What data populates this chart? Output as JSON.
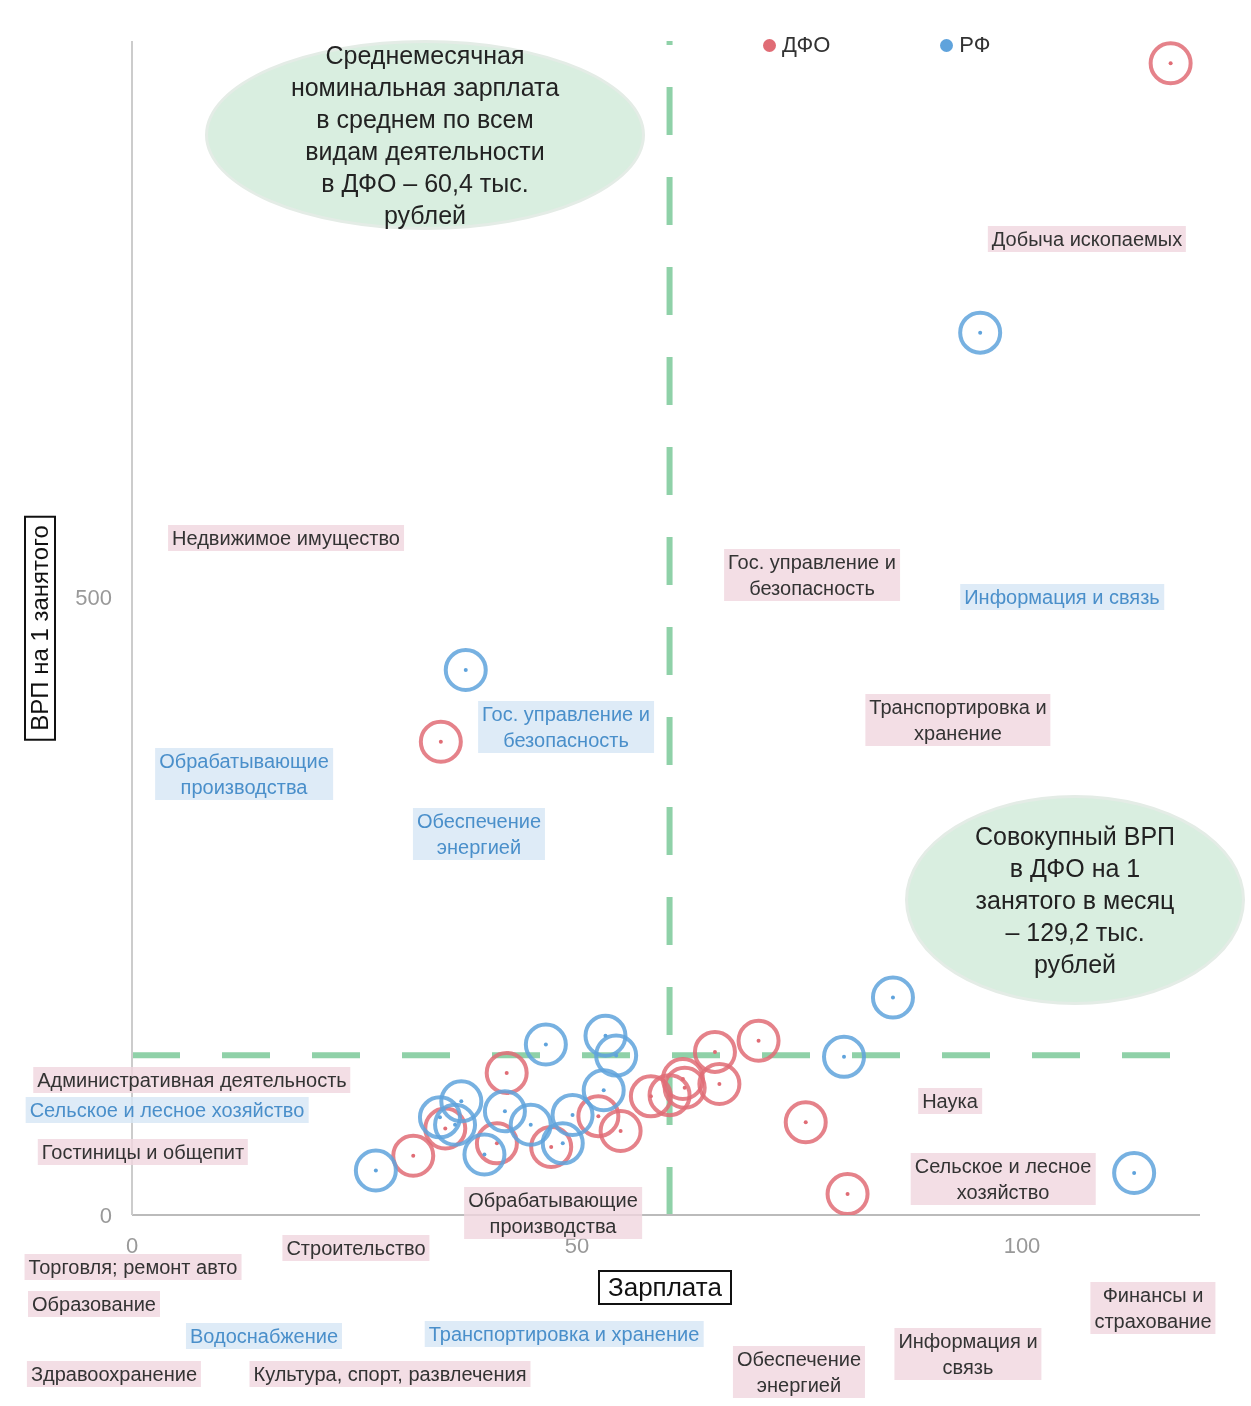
{
  "chart_data": {
    "type": "scatter",
    "xlabel": "Зарплата",
    "ylabel": "ВРП на 1 занятого",
    "xlim": [
      0,
      120
    ],
    "xticks": [
      0,
      50,
      100
    ],
    "ylim": [
      0,
      950
    ],
    "yticks": [
      0,
      500
    ],
    "marker": "circle",
    "legend": "top right",
    "series": [
      {
        "name": "ДФО",
        "color": "#e06c75",
        "x": [
          116.7,
          34.7,
          75.7,
          80.4,
          42.1,
          35.2,
          31.6,
          41.0,
          47.1,
          52.4,
          54.9,
          58.3,
          62.1,
          61.9,
          66.0,
          65.5,
          70.4,
          60.4
        ],
        "values": [
          932,
          383,
          75,
          17,
          115,
          70,
          48,
          58,
          55,
          80,
          68,
          96,
          103,
          110,
          106,
          132,
          141,
          97
        ]
      },
      {
        "name": "РФ",
        "color": "#5fa3dc",
        "x": [
          95.3,
          37.5,
          85.5,
          80.0,
          112.6,
          46.5,
          53.2,
          54.4,
          53.0,
          49.5,
          44.8,
          41.9,
          37.0,
          36.3,
          39.6,
          48.4,
          27.4,
          34.6
        ],
        "values": [
          714,
          441,
          176,
          128,
          34,
          138,
          145,
          129,
          101,
          81,
          73,
          84,
          92,
          73,
          49,
          58,
          36,
          79
        ]
      }
    ],
    "ref_lines": [
      {
        "axis": "x",
        "value": 60.4,
        "color": "#8fd1a8",
        "line_style": "dashed"
      },
      {
        "axis": "y",
        "value": 129.2,
        "color": "#8fd1a8",
        "line_style": "dashed"
      }
    ],
    "annotations": [
      "Среднемесячная\nноминальная зарплата\nв среднем по всем\nвидам деятельности\nв ДФО – 60,4 тыс.\nрублей",
      "Совокупный ВРП\nв ДФО на 1\nзанятого в месяц\n– 129,2 тыс.\nрублей",
      "Добыча ископаемых",
      "Недвижимое имущество",
      "Гос. управление и\nбезопасность",
      "Информация и связь",
      "Гос. управление и\nбезопасность",
      "Транспортировка и\nхранение",
      "Обрабатывающие\nпроизводства",
      "Обеспечение\nэнергией",
      "Административная деятельность",
      "Сельское и лесное хозяйство",
      "Наука",
      "Гостиницы и общепит",
      "Сельское и лесное\nхозяйство",
      "Обрабатывающие\nпроизводства",
      "Строительство",
      "Торговля; ремонт авто",
      "Финансы и\nстрахование",
      "Образование",
      "Водоснабжение",
      "Транспортировка и хранение",
      "Информация и\nсвязь",
      "Обеспечение\nэнергией",
      "Здравоохранение",
      "Культура, спорт, развлечения"
    ]
  }
}
